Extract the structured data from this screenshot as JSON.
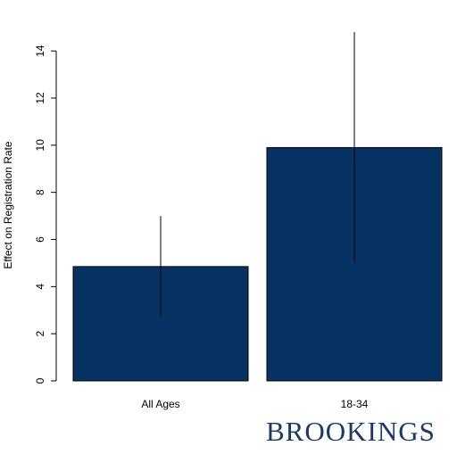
{
  "chart_data": {
    "type": "bar",
    "categories": [
      "All Ages",
      "18-34"
    ],
    "values": [
      4.85,
      9.9
    ],
    "error_bars": [
      {
        "low": 2.7,
        "high": 7.0
      },
      {
        "low": 5.05,
        "high": 14.8
      }
    ],
    "ylabel": "Effect on Registration Rate",
    "xlabel": "",
    "ylim": [
      0,
      14.8
    ],
    "yticks": [
      0,
      2,
      4,
      6,
      8,
      10,
      12,
      14
    ],
    "bar_color": "#063364",
    "grid": false
  },
  "branding": {
    "logo_text": "BROOKINGS",
    "color": "#1b3a6b"
  }
}
